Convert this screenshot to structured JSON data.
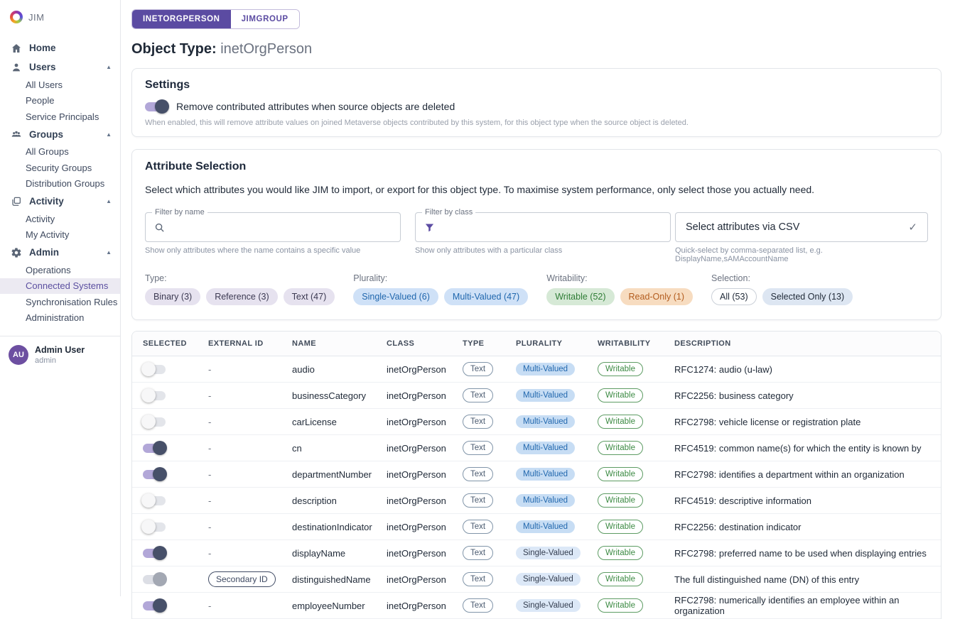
{
  "app": {
    "name": "JIM"
  },
  "sidebar": {
    "nav": [
      {
        "label": "Home",
        "icon": "home-icon",
        "level": 0,
        "caret": false,
        "active": false
      },
      {
        "label": "Users",
        "icon": "user-icon",
        "level": 0,
        "caret": true,
        "active": false
      },
      {
        "label": "All Users",
        "level": 1,
        "active": false
      },
      {
        "label": "People",
        "level": 1,
        "active": false
      },
      {
        "label": "Service Principals",
        "level": 1,
        "active": false
      },
      {
        "label": "Groups",
        "icon": "groups-icon",
        "level": 0,
        "caret": true,
        "active": false
      },
      {
        "label": "All Groups",
        "level": 1,
        "active": false
      },
      {
        "label": "Security Groups",
        "level": 1,
        "active": false
      },
      {
        "label": "Distribution Groups",
        "level": 1,
        "active": false
      },
      {
        "label": "Activity",
        "icon": "layers-icon",
        "level": 0,
        "caret": true,
        "active": false
      },
      {
        "label": "Activity",
        "level": 1,
        "active": false
      },
      {
        "label": "My Activity",
        "level": 1,
        "active": false
      },
      {
        "label": "Admin",
        "icon": "gear-icon",
        "level": 0,
        "caret": true,
        "active": false
      },
      {
        "label": "Operations",
        "level": 1,
        "active": false
      },
      {
        "label": "Connected Systems",
        "level": 1,
        "active": true
      },
      {
        "label": "Synchronisation Rules",
        "level": 1,
        "active": false
      },
      {
        "label": "Administration",
        "level": 1,
        "active": false
      }
    ],
    "user": {
      "initials": "AU",
      "name": "Admin User",
      "role": "admin"
    }
  },
  "tabs": [
    {
      "label": "INETORGPERSON",
      "active": true
    },
    {
      "label": "JIMGROUP",
      "active": false
    }
  ],
  "page": {
    "title_prefix": "Object Type:",
    "title_value": "inetOrgPerson"
  },
  "settings": {
    "heading": "Settings",
    "toggle_state": "on",
    "toggle_label": "Remove contributed attributes when source objects are deleted",
    "help": "When enabled, this will remove attribute values on joined Metaverse objects contributed by this system, for this object type when the source object is deleted."
  },
  "attribute_selection": {
    "heading": "Attribute Selection",
    "description": "Select which attributes you would like JIM to import, or export for this object type. To maximise system performance, only select those you actually need.",
    "filter_name": {
      "label": "Filter by name",
      "value": "",
      "icon": "search-icon",
      "help": "Show only attributes where the name contains a specific value"
    },
    "filter_class": {
      "label": "Filter by class",
      "value": "",
      "icon": "filter-icon",
      "help": "Show only attributes with a particular class"
    },
    "csv_select": {
      "label": "Select attributes via CSV",
      "icon": "check-icon",
      "help": "Quick-select by comma-separated list, e.g. DisplayName,sAMAccountName"
    },
    "chip_groups": [
      {
        "label": "Type:",
        "chips": [
          {
            "label": "Binary (3)",
            "style": "purple"
          },
          {
            "label": "Reference (3)",
            "style": "purple"
          },
          {
            "label": "Text (47)",
            "style": "purple"
          }
        ]
      },
      {
        "label": "Plurality:",
        "chips": [
          {
            "label": "Single-Valued (6)",
            "style": "blue"
          },
          {
            "label": "Multi-Valued (47)",
            "style": "blue"
          }
        ]
      },
      {
        "label": "Writability:",
        "chips": [
          {
            "label": "Writable (52)",
            "style": "green"
          },
          {
            "label": "Read-Only (1)",
            "style": "orange"
          }
        ]
      },
      {
        "label": "Selection:",
        "chips": [
          {
            "label": "All (53)",
            "style": "outline"
          },
          {
            "label": "Selected Only (13)",
            "style": "bluegray"
          }
        ]
      }
    ]
  },
  "table": {
    "headers": [
      "SELECTED",
      "EXTERNAL ID",
      "NAME",
      "CLASS",
      "TYPE",
      "PLURALITY",
      "WRITABILITY",
      "DESCRIPTION"
    ],
    "rows": [
      {
        "selected": "off",
        "external_id": "-",
        "external_badge": "",
        "name": "audio",
        "class": "inetOrgPerson",
        "type": "Text",
        "plurality": "Multi-Valued",
        "writability": "Writable",
        "description": "RFC1274: audio (u-law)"
      },
      {
        "selected": "off",
        "external_id": "-",
        "external_badge": "",
        "name": "businessCategory",
        "class": "inetOrgPerson",
        "type": "Text",
        "plurality": "Multi-Valued",
        "writability": "Writable",
        "description": "RFC2256: business category"
      },
      {
        "selected": "off",
        "external_id": "-",
        "external_badge": "",
        "name": "carLicense",
        "class": "inetOrgPerson",
        "type": "Text",
        "plurality": "Multi-Valued",
        "writability": "Writable",
        "description": "RFC2798: vehicle license or registration plate"
      },
      {
        "selected": "on",
        "external_id": "-",
        "external_badge": "",
        "name": "cn",
        "class": "inetOrgPerson",
        "type": "Text",
        "plurality": "Multi-Valued",
        "writability": "Writable",
        "description": "RFC4519: common name(s) for which the entity is known by"
      },
      {
        "selected": "on",
        "external_id": "-",
        "external_badge": "",
        "name": "departmentNumber",
        "class": "inetOrgPerson",
        "type": "Text",
        "plurality": "Multi-Valued",
        "writability": "Writable",
        "description": "RFC2798: identifies a department within an organization"
      },
      {
        "selected": "off",
        "external_id": "-",
        "external_badge": "",
        "name": "description",
        "class": "inetOrgPerson",
        "type": "Text",
        "plurality": "Multi-Valued",
        "writability": "Writable",
        "description": "RFC4519: descriptive information"
      },
      {
        "selected": "off",
        "external_id": "-",
        "external_badge": "",
        "name": "destinationIndicator",
        "class": "inetOrgPerson",
        "type": "Text",
        "plurality": "Multi-Valued",
        "writability": "Writable",
        "description": "RFC2256: destination indicator"
      },
      {
        "selected": "on",
        "external_id": "-",
        "external_badge": "",
        "name": "displayName",
        "class": "inetOrgPerson",
        "type": "Text",
        "plurality": "Single-Valued",
        "writability": "Writable",
        "description": "RFC2798: preferred name to be used when displaying entries"
      },
      {
        "selected": "on-disabled",
        "external_id": "",
        "external_badge": "Secondary ID",
        "name": "distinguishedName",
        "class": "inetOrgPerson",
        "type": "Text",
        "plurality": "Single-Valued",
        "writability": "Writable",
        "description": "The full distinguished name (DN) of this entry"
      },
      {
        "selected": "on",
        "external_id": "-",
        "external_badge": "",
        "name": "employeeNumber",
        "class": "inetOrgPerson",
        "type": "Text",
        "plurality": "Single-Valued",
        "writability": "Writable",
        "description": "RFC2798: numerically identifies an employee within an organization"
      }
    ]
  },
  "colors": {
    "brand_purple": "#5b4ba2",
    "active_nav_bg": "#eceaf2",
    "toggle_on_track": "#b2a7d8",
    "toggle_on_knob": "#475069",
    "multi_valued_bg": "#c7ddf4",
    "single_valued_bg": "#dce8f7",
    "writable_green": "#3c8a43",
    "readonly_orange": "#b35c1e"
  }
}
